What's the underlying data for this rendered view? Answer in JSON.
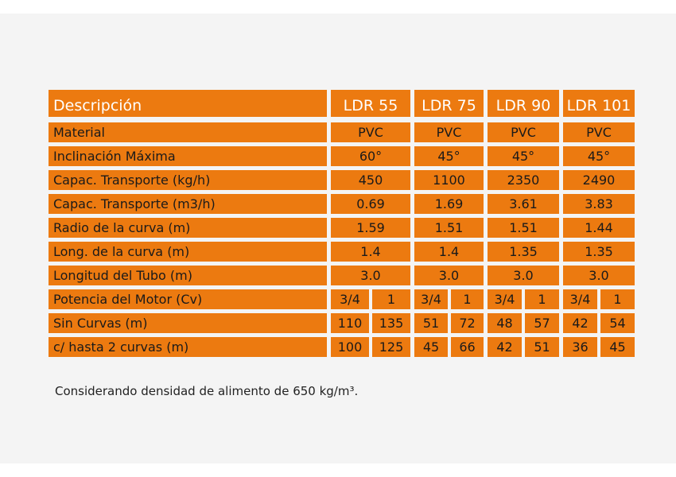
{
  "headers": [
    "Descripción",
    "LDR 55",
    "LDR 75",
    "LDR 90",
    "LDR 101"
  ],
  "rows": [
    {
      "label": "Material",
      "values": [
        "PVC",
        "PVC",
        "PVC",
        "PVC"
      ]
    },
    {
      "label": "Inclinación Máxima",
      "values": [
        "60°",
        "45°",
        "45°",
        "45°"
      ]
    },
    {
      "label": "Capac. Transporte (kg/h)",
      "values": [
        "450",
        "1100",
        "2350",
        "2490"
      ]
    },
    {
      "label": "Capac. Transporte (m3/h)",
      "values": [
        "0.69",
        "1.69",
        "3.61",
        "3.83"
      ]
    },
    {
      "label": "Radio de la curva (m)",
      "values": [
        "1.59",
        "1.51",
        "1.51",
        "1.44"
      ]
    },
    {
      "label": "Long. de la curva (m)",
      "values": [
        "1.4",
        "1.4",
        "1.35",
        "1.35"
      ]
    },
    {
      "label": "Longitud del Tubo (m)",
      "values": [
        "3.0",
        "3.0",
        "3.0",
        "3.0"
      ]
    },
    {
      "label": "Potencia del Motor (Cv)",
      "values": [
        [
          "3/4",
          "1"
        ],
        [
          "3/4",
          "1"
        ],
        [
          "3/4",
          "1"
        ],
        [
          "3/4",
          "1"
        ]
      ]
    },
    {
      "label": "Sin Curvas (m)",
      "values": [
        [
          "110",
          "135"
        ],
        [
          "51",
          "72"
        ],
        [
          "48",
          "57"
        ],
        [
          "42",
          "54"
        ]
      ]
    },
    {
      "label": "c/ hasta 2 curvas (m)",
      "values": [
        [
          "100",
          "125"
        ],
        [
          "45",
          "66"
        ],
        [
          "42",
          "51"
        ],
        [
          "36",
          "45"
        ]
      ]
    }
  ],
  "note": "Considerando densidad de alimento de 650 kg/m³.",
  "colors": {
    "header_bg": "#ec7a10",
    "cell_bg": "#ec7a10",
    "header_text": "#ffffff",
    "cell_text": "#1a1a1a"
  }
}
